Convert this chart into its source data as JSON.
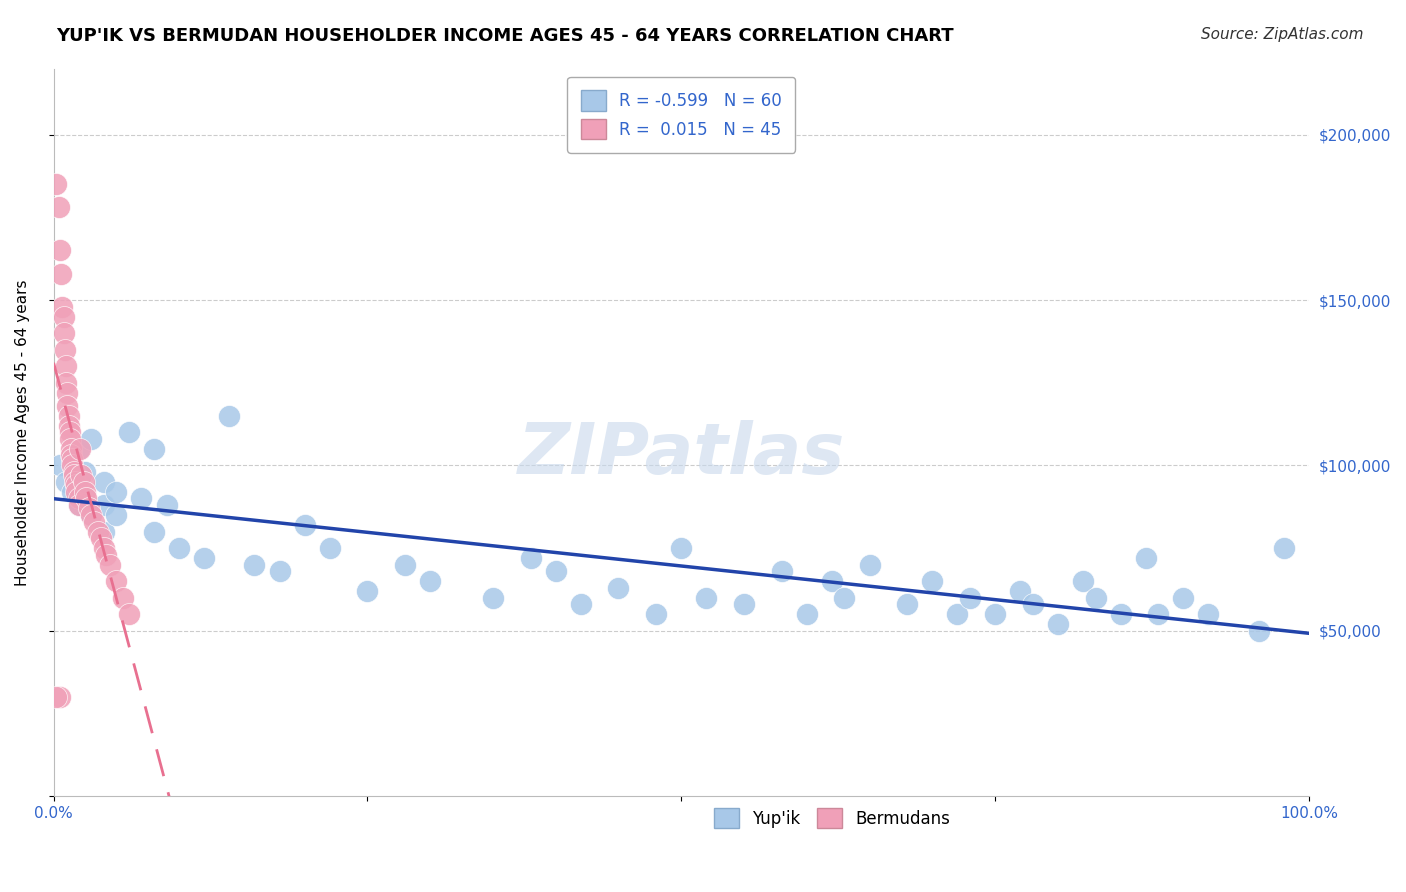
{
  "title": "YUP'IK VS BERMUDAN HOUSEHOLDER INCOME AGES 45 - 64 YEARS CORRELATION CHART",
  "source": "Source: ZipAtlas.com",
  "ylabel": "Householder Income Ages 45 - 64 years",
  "R_yupik": -0.599,
  "N_yupik": 60,
  "R_bermudan": 0.015,
  "N_bermudan": 45,
  "yupik_color": "#a8c8e8",
  "bermudan_color": "#f0a0b8",
  "yupik_line_color": "#2244aa",
  "bermudan_line_color": "#e87090",
  "xlim": [
    0.0,
    1.0
  ],
  "ylim": [
    0,
    220000
  ],
  "yticks": [
    0,
    50000,
    100000,
    150000,
    200000
  ],
  "ytick_labels": [
    "",
    "$50,000",
    "$100,000",
    "$150,000",
    "$200,000"
  ],
  "xticks": [
    0.0,
    0.25,
    0.5,
    0.75,
    1.0
  ],
  "xtick_labels": [
    "0.0%",
    "",
    "",
    "",
    "100.0%"
  ],
  "background_color": "#ffffff",
  "grid_color": "#cccccc",
  "title_fontsize": 13,
  "axis_label_fontsize": 11,
  "tick_fontsize": 11,
  "legend_fontsize": 12,
  "source_fontsize": 11,
  "yupik_x": [
    0.005,
    0.01,
    0.015,
    0.02,
    0.02,
    0.025,
    0.025,
    0.03,
    0.03,
    0.04,
    0.04,
    0.04,
    0.05,
    0.05,
    0.06,
    0.07,
    0.08,
    0.08,
    0.09,
    0.1,
    0.12,
    0.14,
    0.16,
    0.18,
    0.2,
    0.22,
    0.25,
    0.28,
    0.3,
    0.35,
    0.38,
    0.4,
    0.42,
    0.45,
    0.48,
    0.5,
    0.52,
    0.55,
    0.58,
    0.6,
    0.62,
    0.63,
    0.65,
    0.68,
    0.7,
    0.72,
    0.73,
    0.75,
    0.77,
    0.78,
    0.8,
    0.82,
    0.83,
    0.85,
    0.87,
    0.88,
    0.9,
    0.92,
    0.96,
    0.98
  ],
  "yupik_y": [
    100000,
    95000,
    92000,
    88000,
    105000,
    98000,
    90000,
    85000,
    108000,
    95000,
    88000,
    80000,
    92000,
    85000,
    110000,
    90000,
    105000,
    80000,
    88000,
    75000,
    72000,
    115000,
    70000,
    68000,
    82000,
    75000,
    62000,
    70000,
    65000,
    60000,
    72000,
    68000,
    58000,
    63000,
    55000,
    75000,
    60000,
    58000,
    68000,
    55000,
    65000,
    60000,
    70000,
    58000,
    65000,
    55000,
    60000,
    55000,
    62000,
    58000,
    52000,
    65000,
    60000,
    55000,
    72000,
    55000,
    60000,
    55000,
    50000,
    75000
  ],
  "bermudan_x": [
    0.002,
    0.004,
    0.005,
    0.006,
    0.007,
    0.008,
    0.008,
    0.009,
    0.01,
    0.01,
    0.011,
    0.011,
    0.012,
    0.012,
    0.013,
    0.013,
    0.014,
    0.014,
    0.015,
    0.015,
    0.016,
    0.016,
    0.017,
    0.018,
    0.018,
    0.02,
    0.02,
    0.021,
    0.022,
    0.024,
    0.025,
    0.026,
    0.028,
    0.03,
    0.032,
    0.035,
    0.038,
    0.04,
    0.042,
    0.045,
    0.05,
    0.055,
    0.06,
    0.005,
    0.002
  ],
  "bermudan_y": [
    185000,
    178000,
    165000,
    158000,
    148000,
    145000,
    140000,
    135000,
    130000,
    125000,
    122000,
    118000,
    115000,
    112000,
    110000,
    108000,
    105000,
    103000,
    102000,
    100000,
    98000,
    97000,
    95000,
    94000,
    92000,
    90000,
    88000,
    105000,
    97000,
    95000,
    92000,
    90000,
    87000,
    85000,
    83000,
    80000,
    78000,
    75000,
    73000,
    70000,
    65000,
    60000,
    55000,
    30000,
    30000
  ]
}
